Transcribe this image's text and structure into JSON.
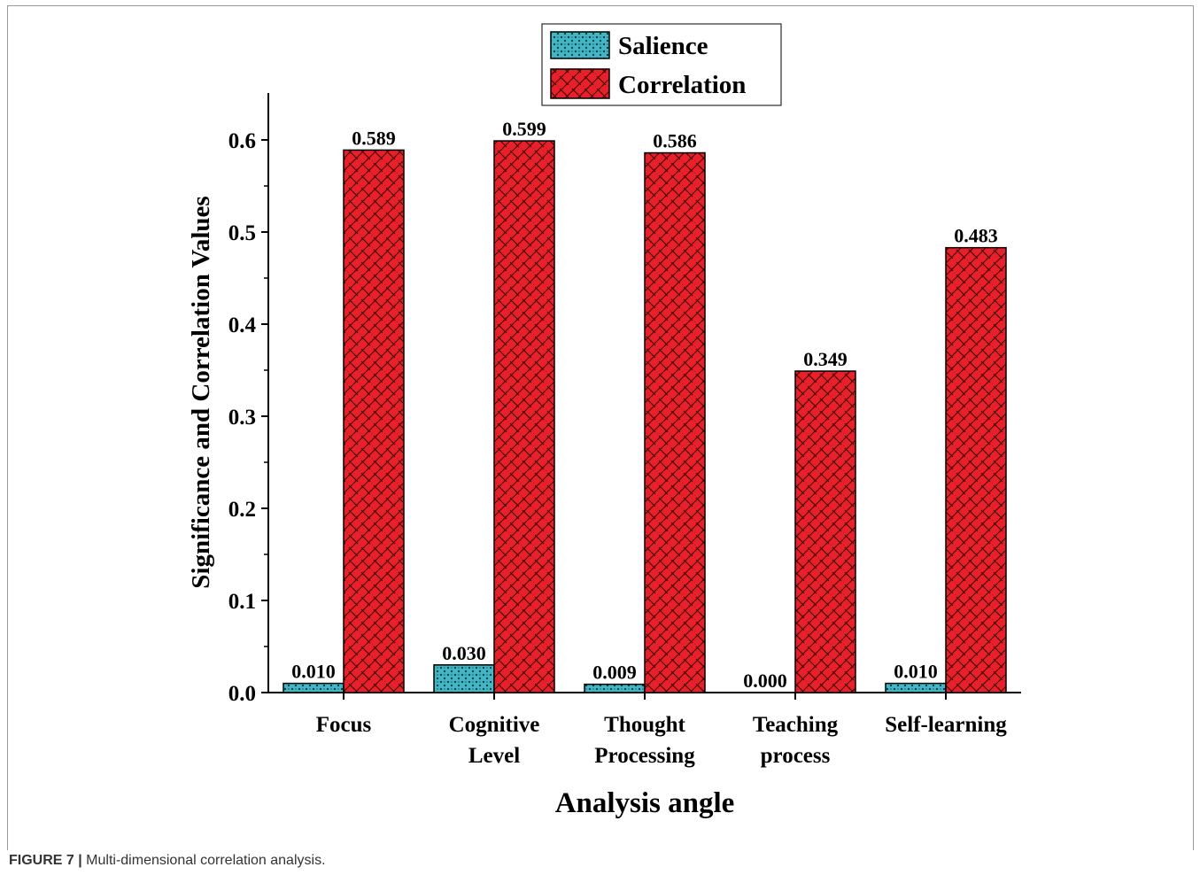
{
  "caption": {
    "label": "FIGURE 7 |",
    "text": "Multi-dimensional correlation analysis."
  },
  "chart_data": {
    "type": "bar",
    "title": "",
    "xlabel": "Analysis angle",
    "ylabel": "Significance and Correlation Values",
    "categories": [
      [
        "Focus"
      ],
      [
        "Cognitive",
        "Level"
      ],
      [
        "Thought",
        "Processing"
      ],
      [
        "Teaching",
        "process"
      ],
      [
        "Self-learning"
      ]
    ],
    "series": [
      {
        "name": "Salience",
        "color": "#3fb7c4",
        "values": [
          0.01,
          0.03,
          0.009,
          0.0,
          0.01
        ],
        "labels": [
          "0.010",
          "0.030",
          "0.009",
          "0.000",
          "0.010"
        ]
      },
      {
        "name": "Correlation",
        "color": "#e8202a",
        "values": [
          0.589,
          0.599,
          0.586,
          0.349,
          0.483
        ],
        "labels": [
          "0.589",
          "0.599",
          "0.586",
          "0.349",
          "0.483"
        ]
      }
    ],
    "ylim": [
      0,
      0.65
    ],
    "yticks": [
      0.0,
      0.1,
      0.2,
      0.3,
      0.4,
      0.5,
      0.6
    ],
    "ytick_labels": [
      "0.0",
      "0.1",
      "0.2",
      "0.3",
      "0.4",
      "0.5",
      "0.6"
    ],
    "legend_position": "top",
    "grid": false
  }
}
